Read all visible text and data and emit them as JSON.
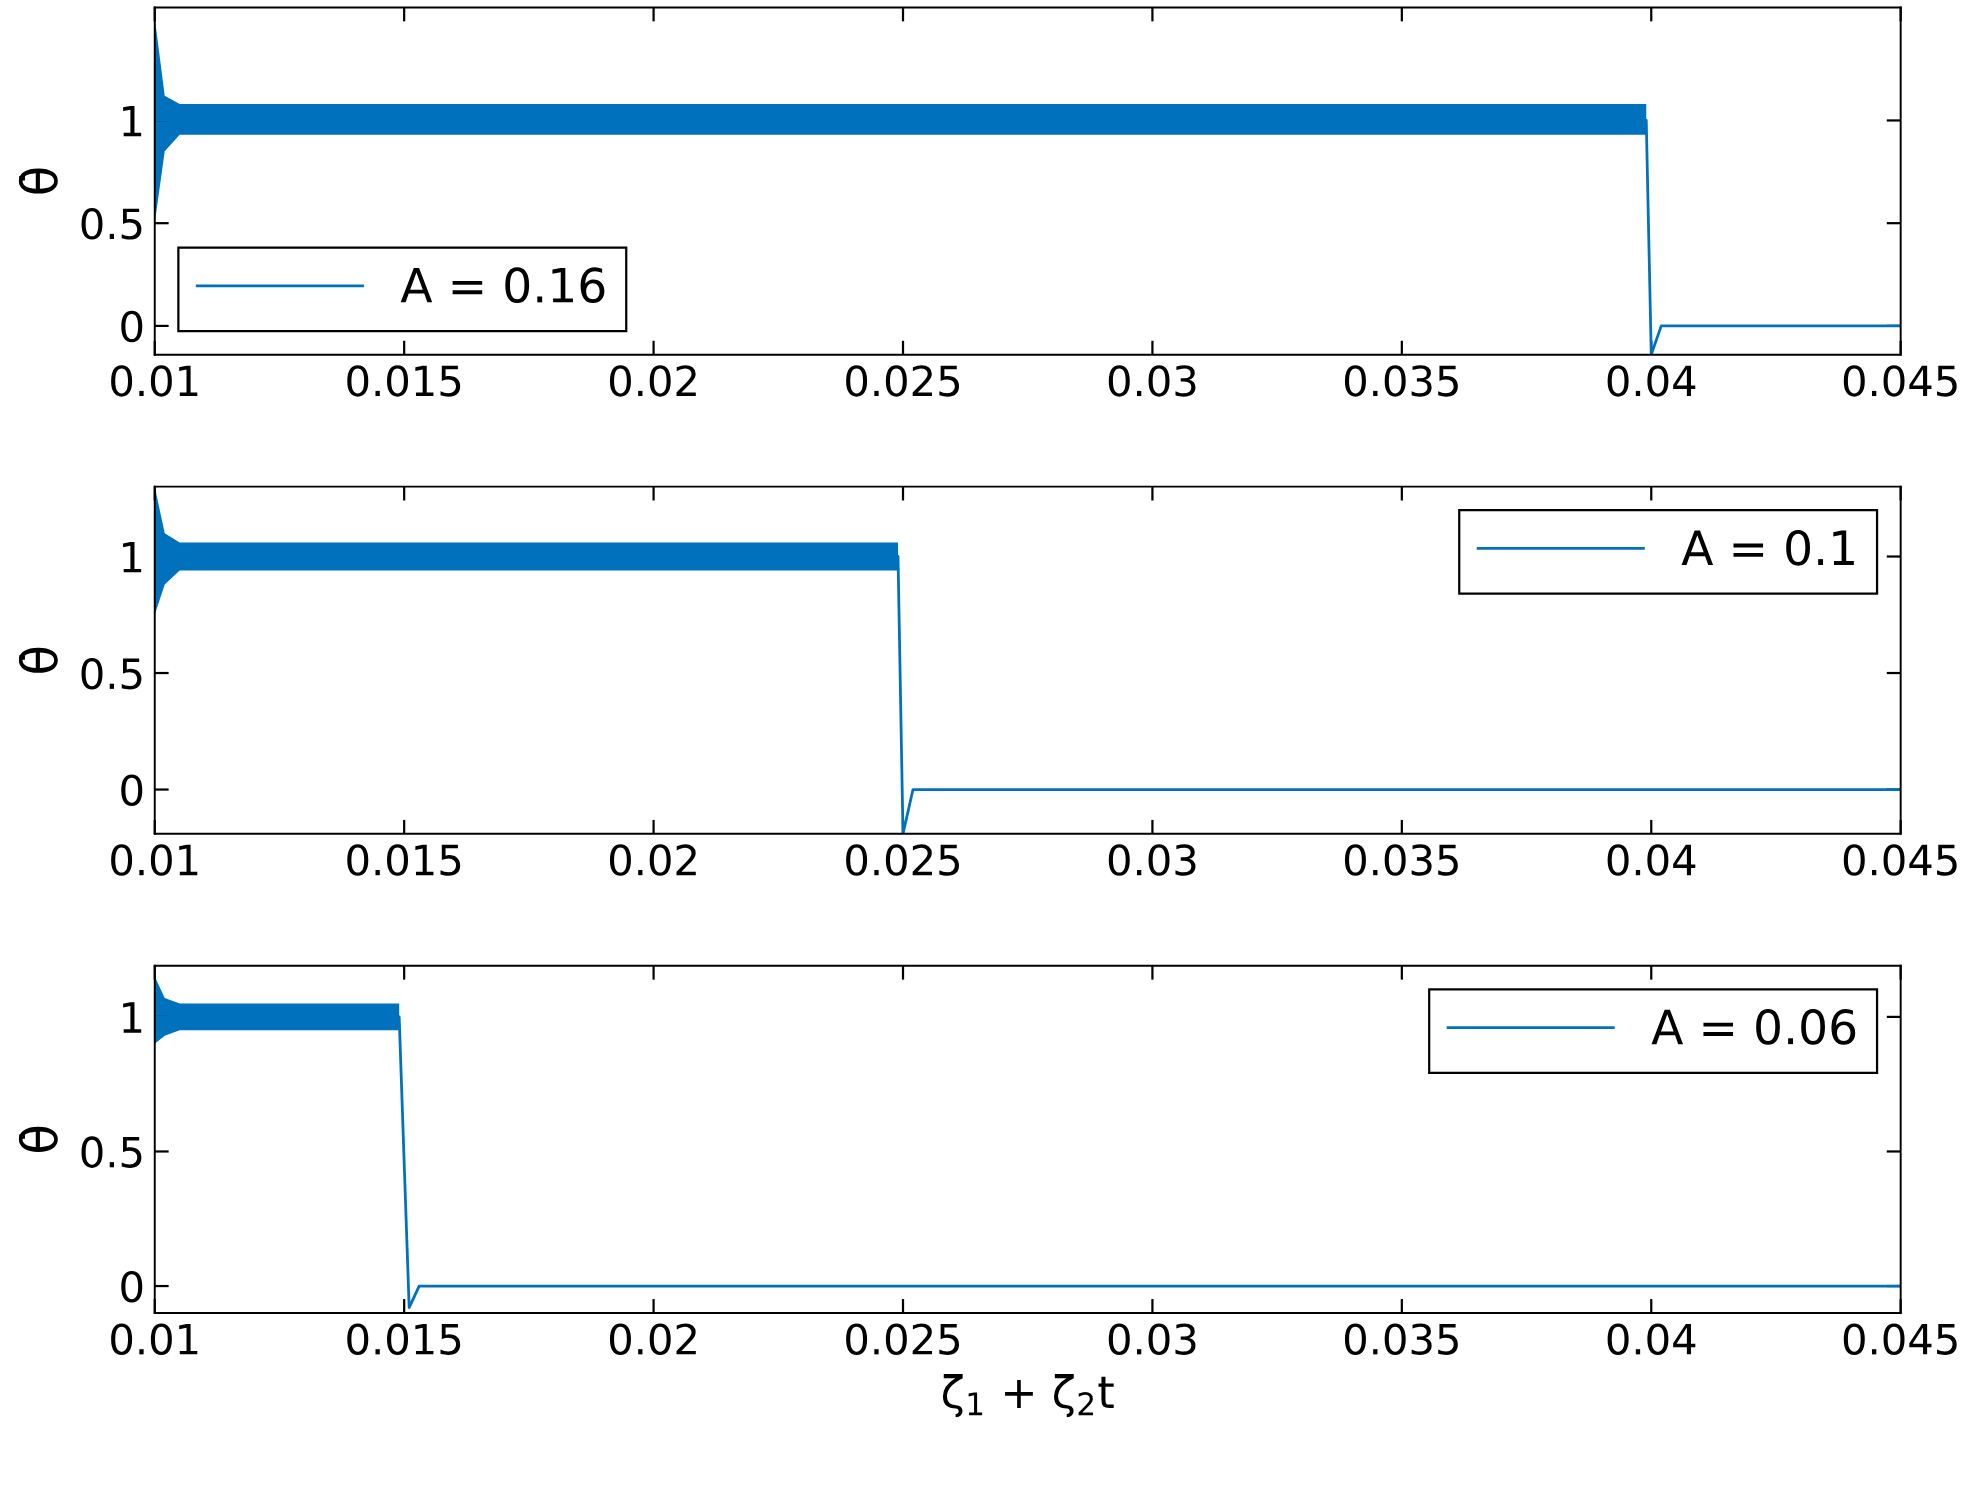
{
  "chart_data": [
    {
      "type": "line",
      "ylabel": "θ̇",
      "xlim": [
        0.01,
        0.045
      ],
      "ylim": [
        -0.14,
        1.55
      ],
      "xticks": [
        0.01,
        0.015,
        0.02,
        0.025,
        0.03,
        0.035,
        0.04,
        0.045
      ],
      "yticks": [
        0,
        0.5,
        1
      ],
      "legend": "bottom left",
      "grid": false,
      "series": [
        {
          "name": "A = 0.16",
          "color": "#0072bd",
          "x": [
            0.01,
            0.0102,
            0.0105,
            0.011,
            0.015,
            0.02,
            0.025,
            0.03,
            0.035,
            0.0399,
            0.04,
            0.0402,
            0.045
          ],
          "values": [
            1,
            1,
            1,
            1,
            1,
            1,
            1,
            1,
            1,
            1,
            -0.14,
            0,
            0
          ],
          "lower": [
            0.5,
            0.85,
            0.93,
            0.93,
            0.93,
            0.93,
            0.93,
            0.93,
            0.93,
            0.93,
            null,
            null,
            null
          ],
          "upper": [
            1.5,
            1.12,
            1.08,
            1.08,
            1.08,
            1.08,
            1.08,
            1.08,
            1.08,
            1.08,
            null,
            null,
            null
          ]
        }
      ]
    },
    {
      "type": "line",
      "ylabel": "θ̇",
      "xlim": [
        0.01,
        0.045
      ],
      "ylim": [
        -0.19,
        1.3
      ],
      "xticks": [
        0.01,
        0.015,
        0.02,
        0.025,
        0.03,
        0.035,
        0.04,
        0.045
      ],
      "yticks": [
        0,
        0.5,
        1
      ],
      "legend": "top right",
      "grid": false,
      "series": [
        {
          "name": "A = 0.1",
          "color": "#0072bd",
          "x": [
            0.01,
            0.0102,
            0.0105,
            0.011,
            0.015,
            0.02,
            0.0249,
            0.025,
            0.0252,
            0.03,
            0.045
          ],
          "values": [
            1,
            1,
            1,
            1,
            1,
            1,
            1,
            -0.19,
            0,
            0,
            0
          ],
          "lower": [
            0.75,
            0.88,
            0.94,
            0.94,
            0.94,
            0.94,
            0.94,
            null,
            null,
            null,
            null
          ],
          "upper": [
            1.3,
            1.1,
            1.06,
            1.06,
            1.06,
            1.06,
            1.06,
            null,
            null,
            null,
            null
          ]
        }
      ]
    },
    {
      "type": "line",
      "ylabel": "θ̇",
      "xlabel": "ζ$_{1}$ + ζ$_{2}$t",
      "xlim": [
        0.01,
        0.045
      ],
      "ylim": [
        -0.1,
        1.19
      ],
      "xticks": [
        0.01,
        0.015,
        0.02,
        0.025,
        0.03,
        0.035,
        0.04,
        0.045
      ],
      "yticks": [
        0,
        0.5,
        1
      ],
      "legend": "top right",
      "grid": false,
      "series": [
        {
          "name": "A = 0.06",
          "color": "#0072bd",
          "x": [
            0.01,
            0.0102,
            0.0105,
            0.011,
            0.0149,
            0.0151,
            0.0153,
            0.02,
            0.045
          ],
          "values": [
            1,
            1,
            1,
            1,
            1,
            -0.08,
            0,
            0,
            0
          ],
          "lower": [
            0.9,
            0.93,
            0.95,
            0.95,
            0.95,
            null,
            null,
            null,
            null
          ],
          "upper": [
            1.15,
            1.07,
            1.05,
            1.05,
            1.05,
            null,
            null,
            null,
            null
          ]
        }
      ]
    }
  ]
}
